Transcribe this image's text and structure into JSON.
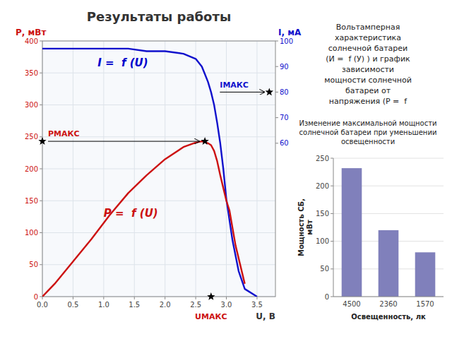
{
  "chart_data": [
    {
      "type": "line",
      "title": "Результаты работы",
      "subtitle": "Вольтамперная\nхарактеристика\nсолнечной батареи\n(И =  f (У) ) и график\nзависимости\nмощности солнечной\nбатареи от\nнапряжения (Р =  f",
      "xlabel": "U, В",
      "ylabel": "Р, мВт",
      "y2label": "I, мА",
      "xlim": [
        0,
        3.8
      ],
      "xticks": [
        {
          "value": 0,
          "label": "0.0"
        },
        0.5,
        {
          "value": 1.0,
          "label": "1.0"
        },
        1.5,
        {
          "value": 2.0,
          "label": "2.0"
        },
        2.5,
        {
          "value": 3.0,
          "label": "3.0"
        },
        3.5
      ],
      "ylim": [
        0,
        400
      ],
      "yticks": [
        0,
        50,
        100,
        150,
        200,
        250,
        300,
        350,
        400
      ],
      "y2lim": [
        0,
        100
      ],
      "y2ticks": [
        60,
        70,
        80,
        90,
        100
      ],
      "grid": true,
      "series": [
        {
          "color": "#1111cc",
          "axis": "y2",
          "x": [
            0,
            0.2,
            0.5,
            0.8,
            1.1,
            1.4,
            1.7,
            2.0,
            2.3,
            2.5,
            2.6,
            2.65,
            2.7,
            2.75,
            2.8,
            2.85,
            2.9,
            2.95,
            3.0,
            3.1,
            3.2,
            3.3,
            3.5
          ],
          "values": [
            97,
            97,
            97,
            97,
            97,
            97,
            96,
            96,
            95,
            93,
            90,
            87,
            84,
            80,
            75,
            68,
            60,
            50,
            38,
            22,
            10,
            3,
            0
          ]
        },
        {
          "color": "#cc1111",
          "x": [
            0,
            0.2,
            0.5,
            0.8,
            1.1,
            1.4,
            1.7,
            2.0,
            2.3,
            2.5,
            2.6,
            2.65,
            2.7,
            2.75,
            2.8,
            2.85,
            2.9,
            2.95,
            3.0,
            3.05,
            3.15,
            3.3
          ],
          "values": [
            0,
            20,
            55,
            90,
            128,
            162,
            190,
            215,
            234,
            241,
            243,
            242,
            240,
            237,
            228,
            212,
            190,
            170,
            150,
            135,
            80,
            20
          ]
        }
      ],
      "annotations": [
        {
          "text": "I =  f (U)",
          "x": 0.9,
          "y": 360,
          "color": "#0000cc"
        },
        {
          "text": "P =  f (U)",
          "x": 1.0,
          "y": 125,
          "color": "#cc1111"
        },
        {
          "text": "IМАКС",
          "x": 3.7,
          "y": 80,
          "axis": "y2",
          "marker": "star",
          "color": "#1111cc"
        },
        {
          "text": "РМАКС",
          "x": 2.65,
          "y": 243,
          "marker": "star",
          "color": "#cc1111"
        },
        {
          "text": "UМАКС",
          "x": 2.75,
          "y": 0,
          "marker": "star",
          "color": "#cc1111"
        }
      ]
    },
    {
      "type": "bar",
      "title": "Изменение максимальной мощности\nсолнечной батареи при уменьшении\nосвещенности",
      "categories": [
        "4500",
        "2360",
        "1570"
      ],
      "values": [
        232,
        120,
        80
      ],
      "color": "#8080bb",
      "xlabel": "Освещенность, лк",
      "ylabel": "Мощность СБ,\nмВт",
      "ylim": [
        0,
        250
      ],
      "yticks": [
        0,
        50,
        100,
        150,
        200,
        250
      ],
      "grid": true
    }
  ]
}
